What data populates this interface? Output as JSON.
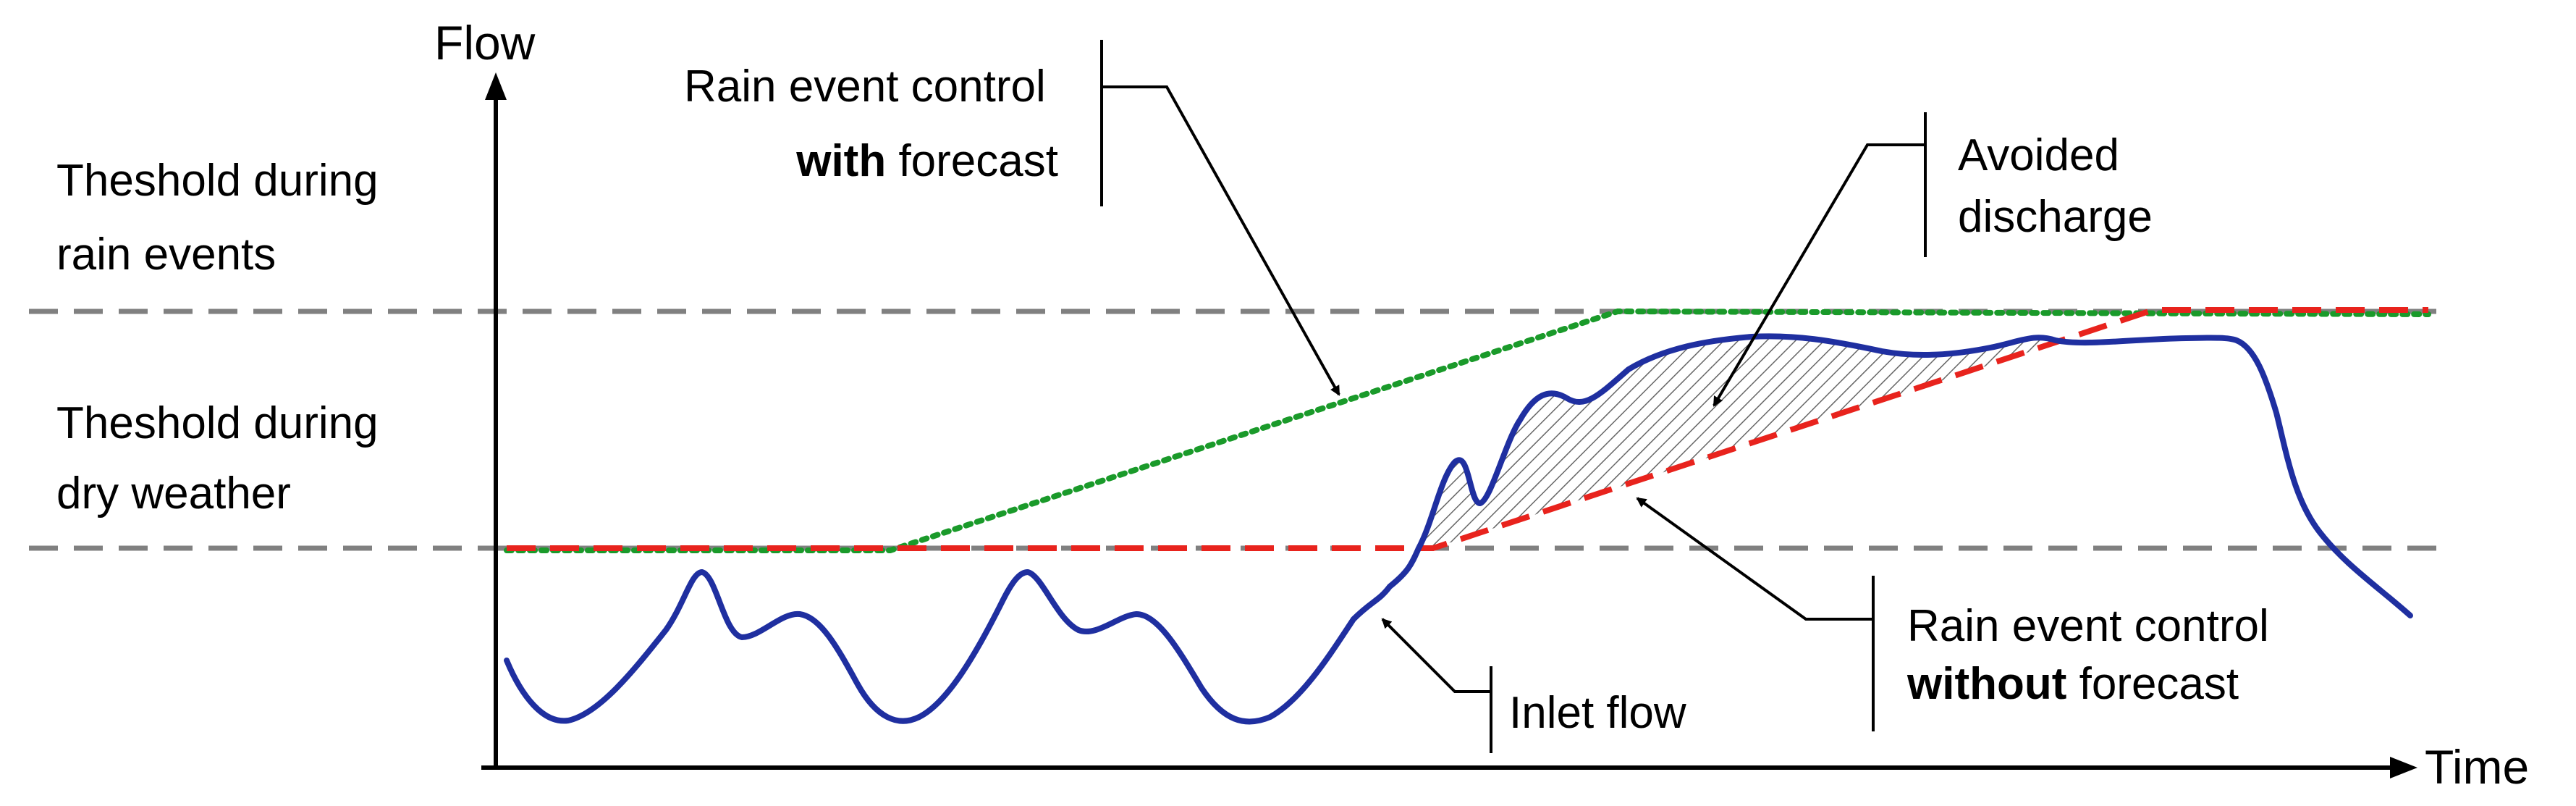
{
  "axes": {
    "y_title": "Flow",
    "x_title": "Time"
  },
  "thresholds": {
    "rain": [
      "Theshold during",
      "rain events"
    ],
    "dry": [
      "Theshold during",
      "dry weather"
    ]
  },
  "callouts": {
    "with_forecast": {
      "line1": "Rain event control",
      "line2_bold": "with",
      "line2_rest": " forecast"
    },
    "avoided": {
      "line1": "Avoided",
      "line2": "discharge"
    },
    "without_forecast": {
      "line1": "Rain event control",
      "line2_bold": "without",
      "line2_rest": " forecast"
    },
    "inlet": "Inlet flow"
  },
  "colors": {
    "inlet_flow": "#1f2fa0",
    "without_forecast": "#e8231d",
    "with_forecast": "#1a9a2a",
    "threshold": "#808080",
    "axis": "#000000",
    "hatch": "#666666"
  }
}
